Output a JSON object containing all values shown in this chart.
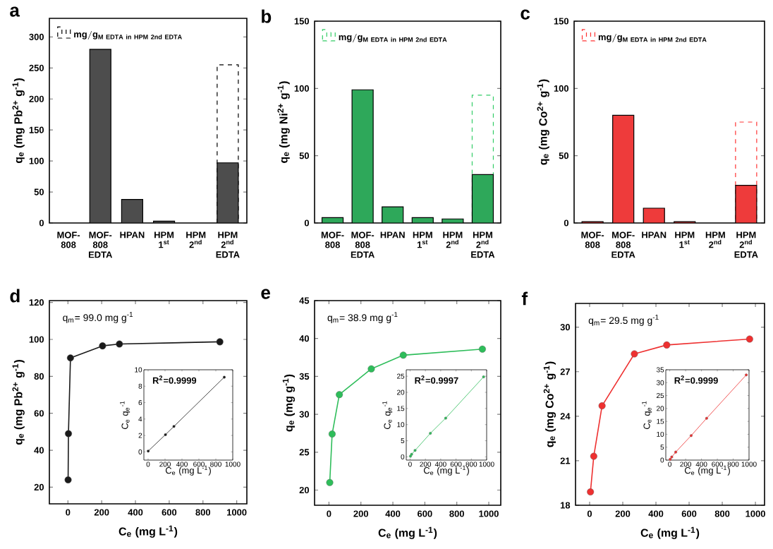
{
  "chart_data": [
    {
      "type": "bar",
      "title": "a",
      "ylabel": "q$_{e}$ (mg Pb$^{2+}$ g$^{-1}$)",
      "categories": [
        "MOF-808",
        "MOF-808 EDTA",
        "HPAN",
        "HPM 1$^{st}$",
        "HPM 2$^{nd}$",
        "HPM 2$^{nd}$ EDTA"
      ],
      "ylim": [
        0,
        330
      ],
      "yticks": [
        0,
        50,
        100,
        150,
        200,
        250,
        300
      ],
      "legend": "top left",
      "series": [
        {
          "name": "\\mathbf{mg/g_{M\\ EDTA\\ in\\ HPM\\ 2nd\\ EDTA}}",
          "color": "#000000",
          "line_style": "dashed",
          "values": [
            null,
            null,
            null,
            null,
            null,
            255
          ]
        },
        {
          "color": "#4d4d4d",
          "values": [
            null,
            280,
            38,
            3,
            null,
            97
          ]
        }
      ]
    },
    {
      "type": "bar",
      "title": "b",
      "ylabel": "q$_{e}$ (mg Ni$^{2+}$ g$^{-1}$)",
      "categories": [
        "MOF-808",
        "MOF-808 EDTA",
        "HPAN",
        "HPM 1$^{st}$",
        "HPM 2$^{nd}$",
        "HPM 2$^{nd}$ EDTA"
      ],
      "ylim": [
        0,
        150
      ],
      "yticks": [
        0,
        50,
        100,
        150
      ],
      "legend": "top left",
      "series": [
        {
          "name": "\\mathbf{mg/g_{M\\ EDTA\\ in\\ HPM\\ 2nd\\ EDTA}}",
          "color": "#33cc66",
          "line_style": "dashed",
          "values": [
            null,
            null,
            null,
            null,
            null,
            95
          ]
        },
        {
          "color": "#2ea85a",
          "values": [
            4,
            99,
            12,
            4,
            3,
            36
          ]
        }
      ]
    },
    {
      "type": "bar",
      "title": "c",
      "ylabel": "q$_{e}$ (mg Co$^{2+}$ g$^{-1}$)",
      "categories": [
        "MOF-808",
        "MOF-808 EDTA",
        "HPAN",
        "HPM 1$^{st}$",
        "HPM 2$^{nd}$",
        "HPM 2$^{nd}$ EDTA"
      ],
      "ylim": [
        0,
        150
      ],
      "yticks": [
        0,
        50,
        100,
        150
      ],
      "legend": "top left",
      "series": [
        {
          "name": "\\mathbf{mg/g_{M\\ EDTA\\ in\\ HPM\\ 2nd\\ EDTA}}",
          "color": "#ff3333",
          "line_style": "dashed",
          "values": [
            null,
            null,
            null,
            null,
            null,
            75
          ]
        },
        {
          "color": "#ee3b3b",
          "values": [
            1,
            80,
            11,
            1,
            null,
            28
          ]
        }
      ]
    },
    {
      "type": "line",
      "title": "d",
      "xlabel": "C$_{e}$ (mg L$^{-1}$)",
      "ylabel": "q$_{e}$ (mg Pb$^{2+}$ g$^{-1}$)",
      "annotations": [
        "q$_{m}$= 99.0 mg g$^{-1}$"
      ],
      "xlim": [
        -110,
        1060
      ],
      "xticks": [
        0,
        200,
        400,
        600,
        800,
        1000
      ],
      "ylim": [
        11,
        121
      ],
      "yticks": [
        20,
        40,
        60,
        80,
        100,
        120
      ],
      "marker": "circle",
      "line_style": "solid",
      "series": [
        {
          "color": "#1a1a1a",
          "x": [
            1,
            3,
            15,
            205,
            305,
            900
          ],
          "values": [
            24,
            49,
            90,
            96.5,
            97.5,
            98.7
          ]
        }
      ]
    },
    {
      "type": "line",
      "xlabel": "C$_{e}$ (mg L$^{-1}$)",
      "ylabel": "C$_{e}$ q$_{e}$$^{-1}$",
      "annotations": [
        "R$^{2}$=0.9999"
      ],
      "xlim": [
        -50,
        1000
      ],
      "xticks": [
        0,
        200,
        400,
        600,
        800,
        1000
      ],
      "ylim": [
        -1,
        10
      ],
      "yticks": [
        0,
        2,
        4,
        6,
        8,
        10
      ],
      "marker": "circle",
      "line_style": "solid",
      "series": [
        {
          "color": "#1a1a1a",
          "x": [
            1,
            205,
            305,
            900
          ],
          "values": [
            0.1,
            2.1,
            3.1,
            9.1
          ]
        }
      ]
    },
    {
      "type": "line",
      "title": "e",
      "xlabel": "C$_{e}$ (mg L$^{-1}$)",
      "ylabel": "q$_{e}$ (mg g$^{-1}$)",
      "annotations": [
        "q$_{m}$= 38.9 mg g$^{-1}$"
      ],
      "xlim": [
        -90,
        1075
      ],
      "xticks": [
        0,
        200,
        400,
        600,
        800,
        1000
      ],
      "ylim": [
        18,
        45
      ],
      "yticks": [
        20,
        25,
        30,
        35,
        40,
        45
      ],
      "marker": "circle",
      "line_style": "solid",
      "series": [
        {
          "color": "#2ebd5a",
          "x": [
            5,
            20,
            65,
            265,
            465,
            960
          ],
          "values": [
            21,
            27.4,
            32.6,
            36,
            37.8,
            38.6
          ]
        }
      ]
    },
    {
      "type": "line",
      "xlabel": "C$_{e}$ (mg L$^{-1}$)",
      "ylabel": "C$_{e}$ q$_{e}$$^{-1}$",
      "annotations": [
        "R$^{2}$=0.9997"
      ],
      "xlim": [
        -50,
        1000
      ],
      "xticks": [
        0,
        200,
        400,
        600,
        800,
        1000
      ],
      "ylim": [
        -1,
        27
      ],
      "yticks": [
        0,
        5,
        10,
        15,
        20,
        25
      ],
      "marker": "circle",
      "line_style": "solid",
      "series": [
        {
          "color": "#2ebd5a",
          "x": [
            5,
            20,
            65,
            265,
            465,
            960
          ],
          "values": [
            0.2,
            0.8,
            2,
            7.3,
            12,
            24.8
          ]
        }
      ]
    },
    {
      "type": "line",
      "title": "f",
      "xlabel": "C$_{e}$ (mg L$^{-1}$)",
      "ylabel": "q$_{e}$ (mg Co$^{2+}$ g$^{-1}$)",
      "annotations": [
        "q$_{m}$= 29.5 mg g$^{-1}$"
      ],
      "xlim": [
        -85,
        1055
      ],
      "xticks": [
        0,
        200,
        400,
        600,
        800,
        1000
      ],
      "ylim": [
        18,
        31.6
      ],
      "yticks": [
        18,
        21,
        24,
        27,
        30
      ],
      "marker": "circle",
      "line_style": "solid",
      "series": [
        {
          "color": "#ee3030",
          "x": [
            5,
            25,
            75,
            270,
            465,
            965
          ],
          "values": [
            18.9,
            21.3,
            24.7,
            28.2,
            28.8,
            29.2
          ]
        }
      ]
    },
    {
      "type": "line",
      "xlabel": "C$_{e}$ (mg L$^{-1}$)",
      "ylabel": "C$_{e}$ q$_{e}$$^{-1}$",
      "annotations": [
        "R$^{2}$=0.9999"
      ],
      "xlim": [
        -50,
        1000
      ],
      "xticks": [
        0,
        200,
        400,
        600,
        800,
        1000
      ],
      "ylim": [
        0,
        35
      ],
      "yticks": [
        0,
        5,
        10,
        15,
        20,
        25,
        30,
        35
      ],
      "marker": "circle",
      "line_style": "solid",
      "series": [
        {
          "color": "#ee3030",
          "x": [
            5,
            25,
            75,
            270,
            465,
            965
          ],
          "values": [
            0.3,
            1.2,
            3.1,
            9.5,
            16.2,
            33
          ]
        }
      ]
    }
  ]
}
